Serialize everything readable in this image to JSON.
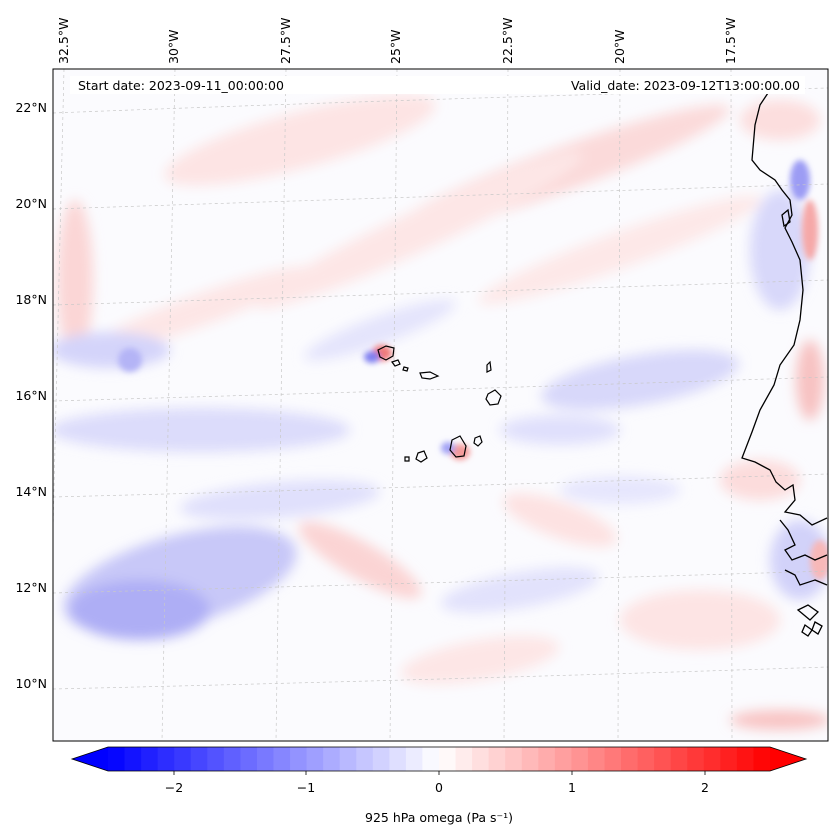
{
  "header": {
    "start_date": "Start date: 2023-09-11_00:00:00",
    "valid_date": "Valid_date: 2023-09-12T13:00:00.00"
  },
  "map": {
    "lon_labels": [
      "32.5°W",
      "30°W",
      "27.5°W",
      "25°W",
      "22.5°W",
      "20°W",
      "17.5°W"
    ],
    "lat_labels": [
      "22°N",
      "20°N",
      "18°N",
      "16°N",
      "14°N",
      "12°N",
      "10°N"
    ],
    "gridlines": true,
    "projection": "conic"
  },
  "colorbar": {
    "label": "925 hPa omega (Pa s⁻¹)",
    "ticks": [
      "−2",
      "−1",
      "0",
      "1",
      "2"
    ],
    "range": [
      -2.5,
      2.5
    ],
    "extend": "both",
    "colormap": "bwr",
    "low_color": "#0000ff",
    "mid_color": "#ffffff",
    "high_color": "#ff0000"
  },
  "colors": {
    "coastline": "#000000",
    "gridline": "#c8c8c8"
  }
}
